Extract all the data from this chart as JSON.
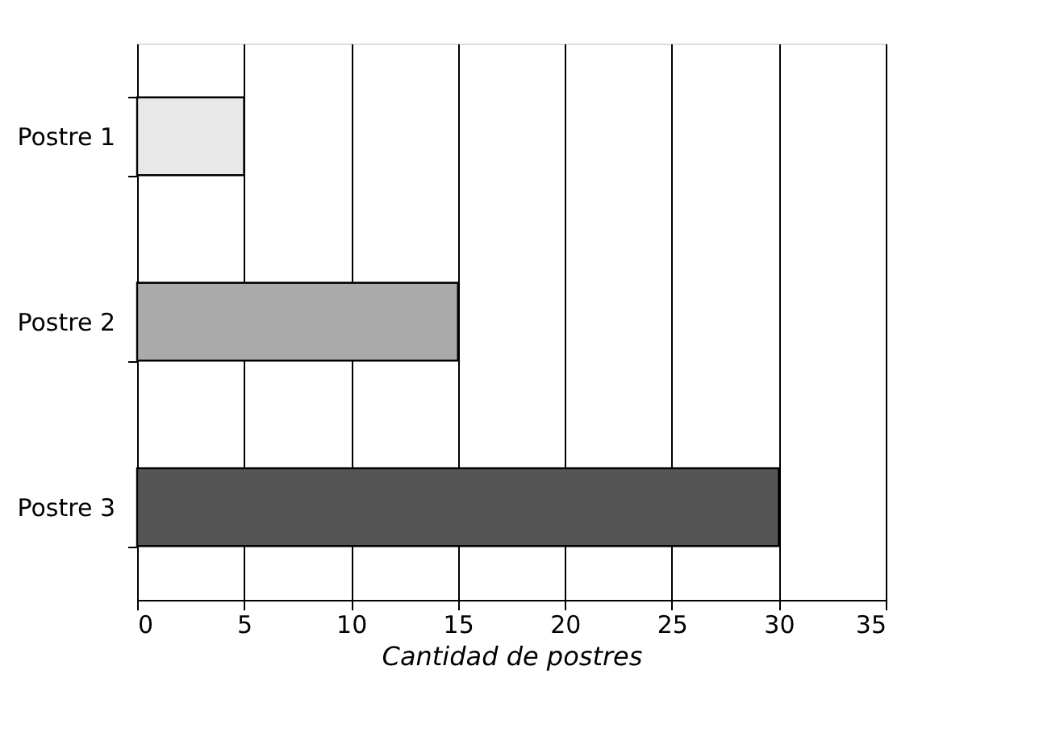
{
  "chart_data": {
    "type": "bar",
    "orientation": "horizontal",
    "xlabel": "Cantidad de postres",
    "categories": [
      "Postre 1",
      "Postre 2",
      "Postre 3"
    ],
    "values": [
      5,
      15,
      30
    ],
    "colors": [
      "#e8e8e8",
      "#aaaaaa",
      "#555555"
    ],
    "xlim": [
      0,
      35
    ],
    "xticks": [
      0,
      5,
      10,
      15,
      20,
      25,
      30,
      35
    ],
    "grid": "x"
  }
}
